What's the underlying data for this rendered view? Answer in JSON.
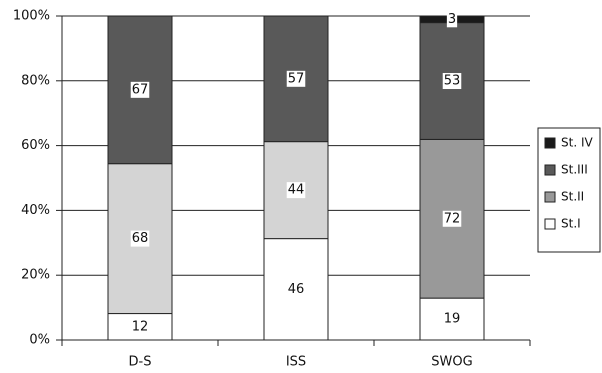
{
  "chart_data": {
    "type": "bar",
    "stacking": "percent",
    "categories": [
      "D-S",
      "ISS",
      "SWOG"
    ],
    "series": [
      {
        "name": "St.I",
        "color": "#ffffff",
        "values": [
          12,
          46,
          19
        ]
      },
      {
        "name": "St.II",
        "color": "#999999",
        "point_colors": [
          "#d4d4d4",
          "#d4d4d4",
          "#999999"
        ],
        "values": [
          68,
          44,
          72
        ]
      },
      {
        "name": "St.III",
        "color": "#595959",
        "values": [
          67,
          57,
          53
        ]
      },
      {
        "name": "St. IV",
        "color": "#1a1a1a",
        "values": [
          null,
          null,
          3
        ]
      }
    ],
    "ylim": [
      0,
      100
    ],
    "yticks": [
      {
        "value": 0,
        "label": "0%"
      },
      {
        "value": 20,
        "label": "20%"
      },
      {
        "value": 40,
        "label": "40%"
      },
      {
        "value": 60,
        "label": "60%"
      },
      {
        "value": 80,
        "label": "80%"
      },
      {
        "value": 100,
        "label": "100%"
      }
    ],
    "grid": true,
    "legend": "right"
  }
}
